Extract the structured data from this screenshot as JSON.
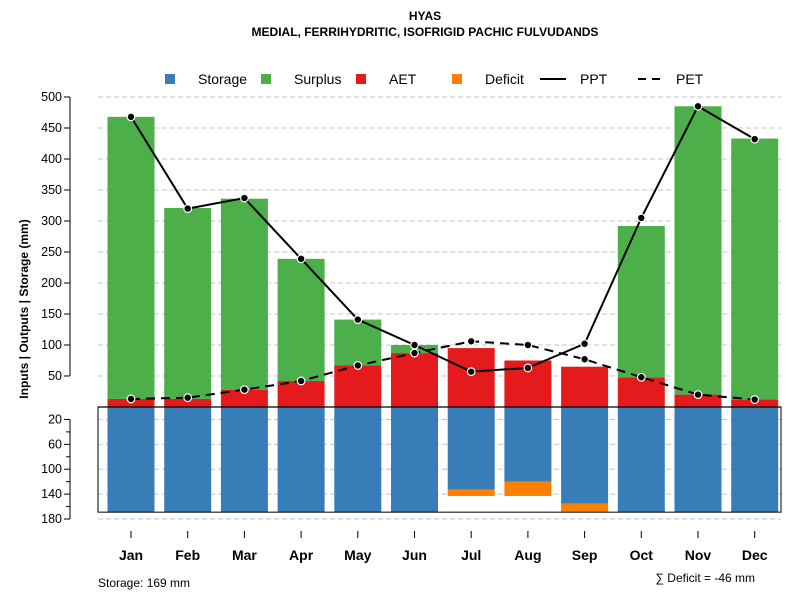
{
  "chart_data": {
    "type": "bar",
    "title": "HYAS",
    "subtitle": "MEDIAL, FERRIHYDRITIC, ISOFRIGID PACHIC FULVUDANDS",
    "ylabel": "Inputs | Outputs | Storage    (mm)",
    "categories": [
      "Jan",
      "Feb",
      "Mar",
      "Apr",
      "May",
      "Jun",
      "Jul",
      "Aug",
      "Sep",
      "Oct",
      "Nov",
      "Dec"
    ],
    "ylim_upper": [
      0,
      500
    ],
    "ylim_lower": [
      0,
      180
    ],
    "yticks_upper": [
      50,
      100,
      150,
      200,
      250,
      300,
      350,
      400,
      450,
      500
    ],
    "yticks_lower": [
      20,
      60,
      100,
      140,
      180
    ],
    "grid": true,
    "legend_position": "top",
    "series": [
      {
        "name": "Storage",
        "kind": "bar-below",
        "color": "#377EB8",
        "values": [
          169,
          169,
          169,
          169,
          169,
          169,
          133,
          120,
          155,
          169,
          169,
          169
        ]
      },
      {
        "name": "Surplus",
        "kind": "bar-above",
        "color": "#4DAF4A",
        "values": [
          455,
          308,
          308,
          197,
          74,
          13,
          0,
          0,
          0,
          244,
          465,
          421
        ]
      },
      {
        "name": "AET",
        "kind": "bar-above",
        "color": "#E41A1C",
        "values": [
          13,
          13,
          28,
          42,
          67,
          87,
          95,
          75,
          65,
          48,
          20,
          12
        ]
      },
      {
        "name": "Deficit",
        "kind": "bar-below",
        "color": "#FF7F00",
        "values": [
          0,
          0,
          0,
          0,
          0,
          0,
          -10,
          -23,
          -13,
          0,
          0,
          0
        ]
      },
      {
        "name": "PPT",
        "kind": "line",
        "color": "#000000",
        "values": [
          468,
          320,
          337,
          239,
          141,
          100,
          57,
          63,
          102,
          305,
          485,
          432
        ]
      },
      {
        "name": "PET",
        "kind": "dashed-line",
        "color": "#000000",
        "values": [
          13,
          15,
          28,
          42,
          67,
          87,
          106,
          100,
          77,
          48,
          20,
          12
        ]
      }
    ],
    "footer_left": "Storage: 169 mm",
    "footer_right": "∑ Deficit = -46 mm"
  }
}
